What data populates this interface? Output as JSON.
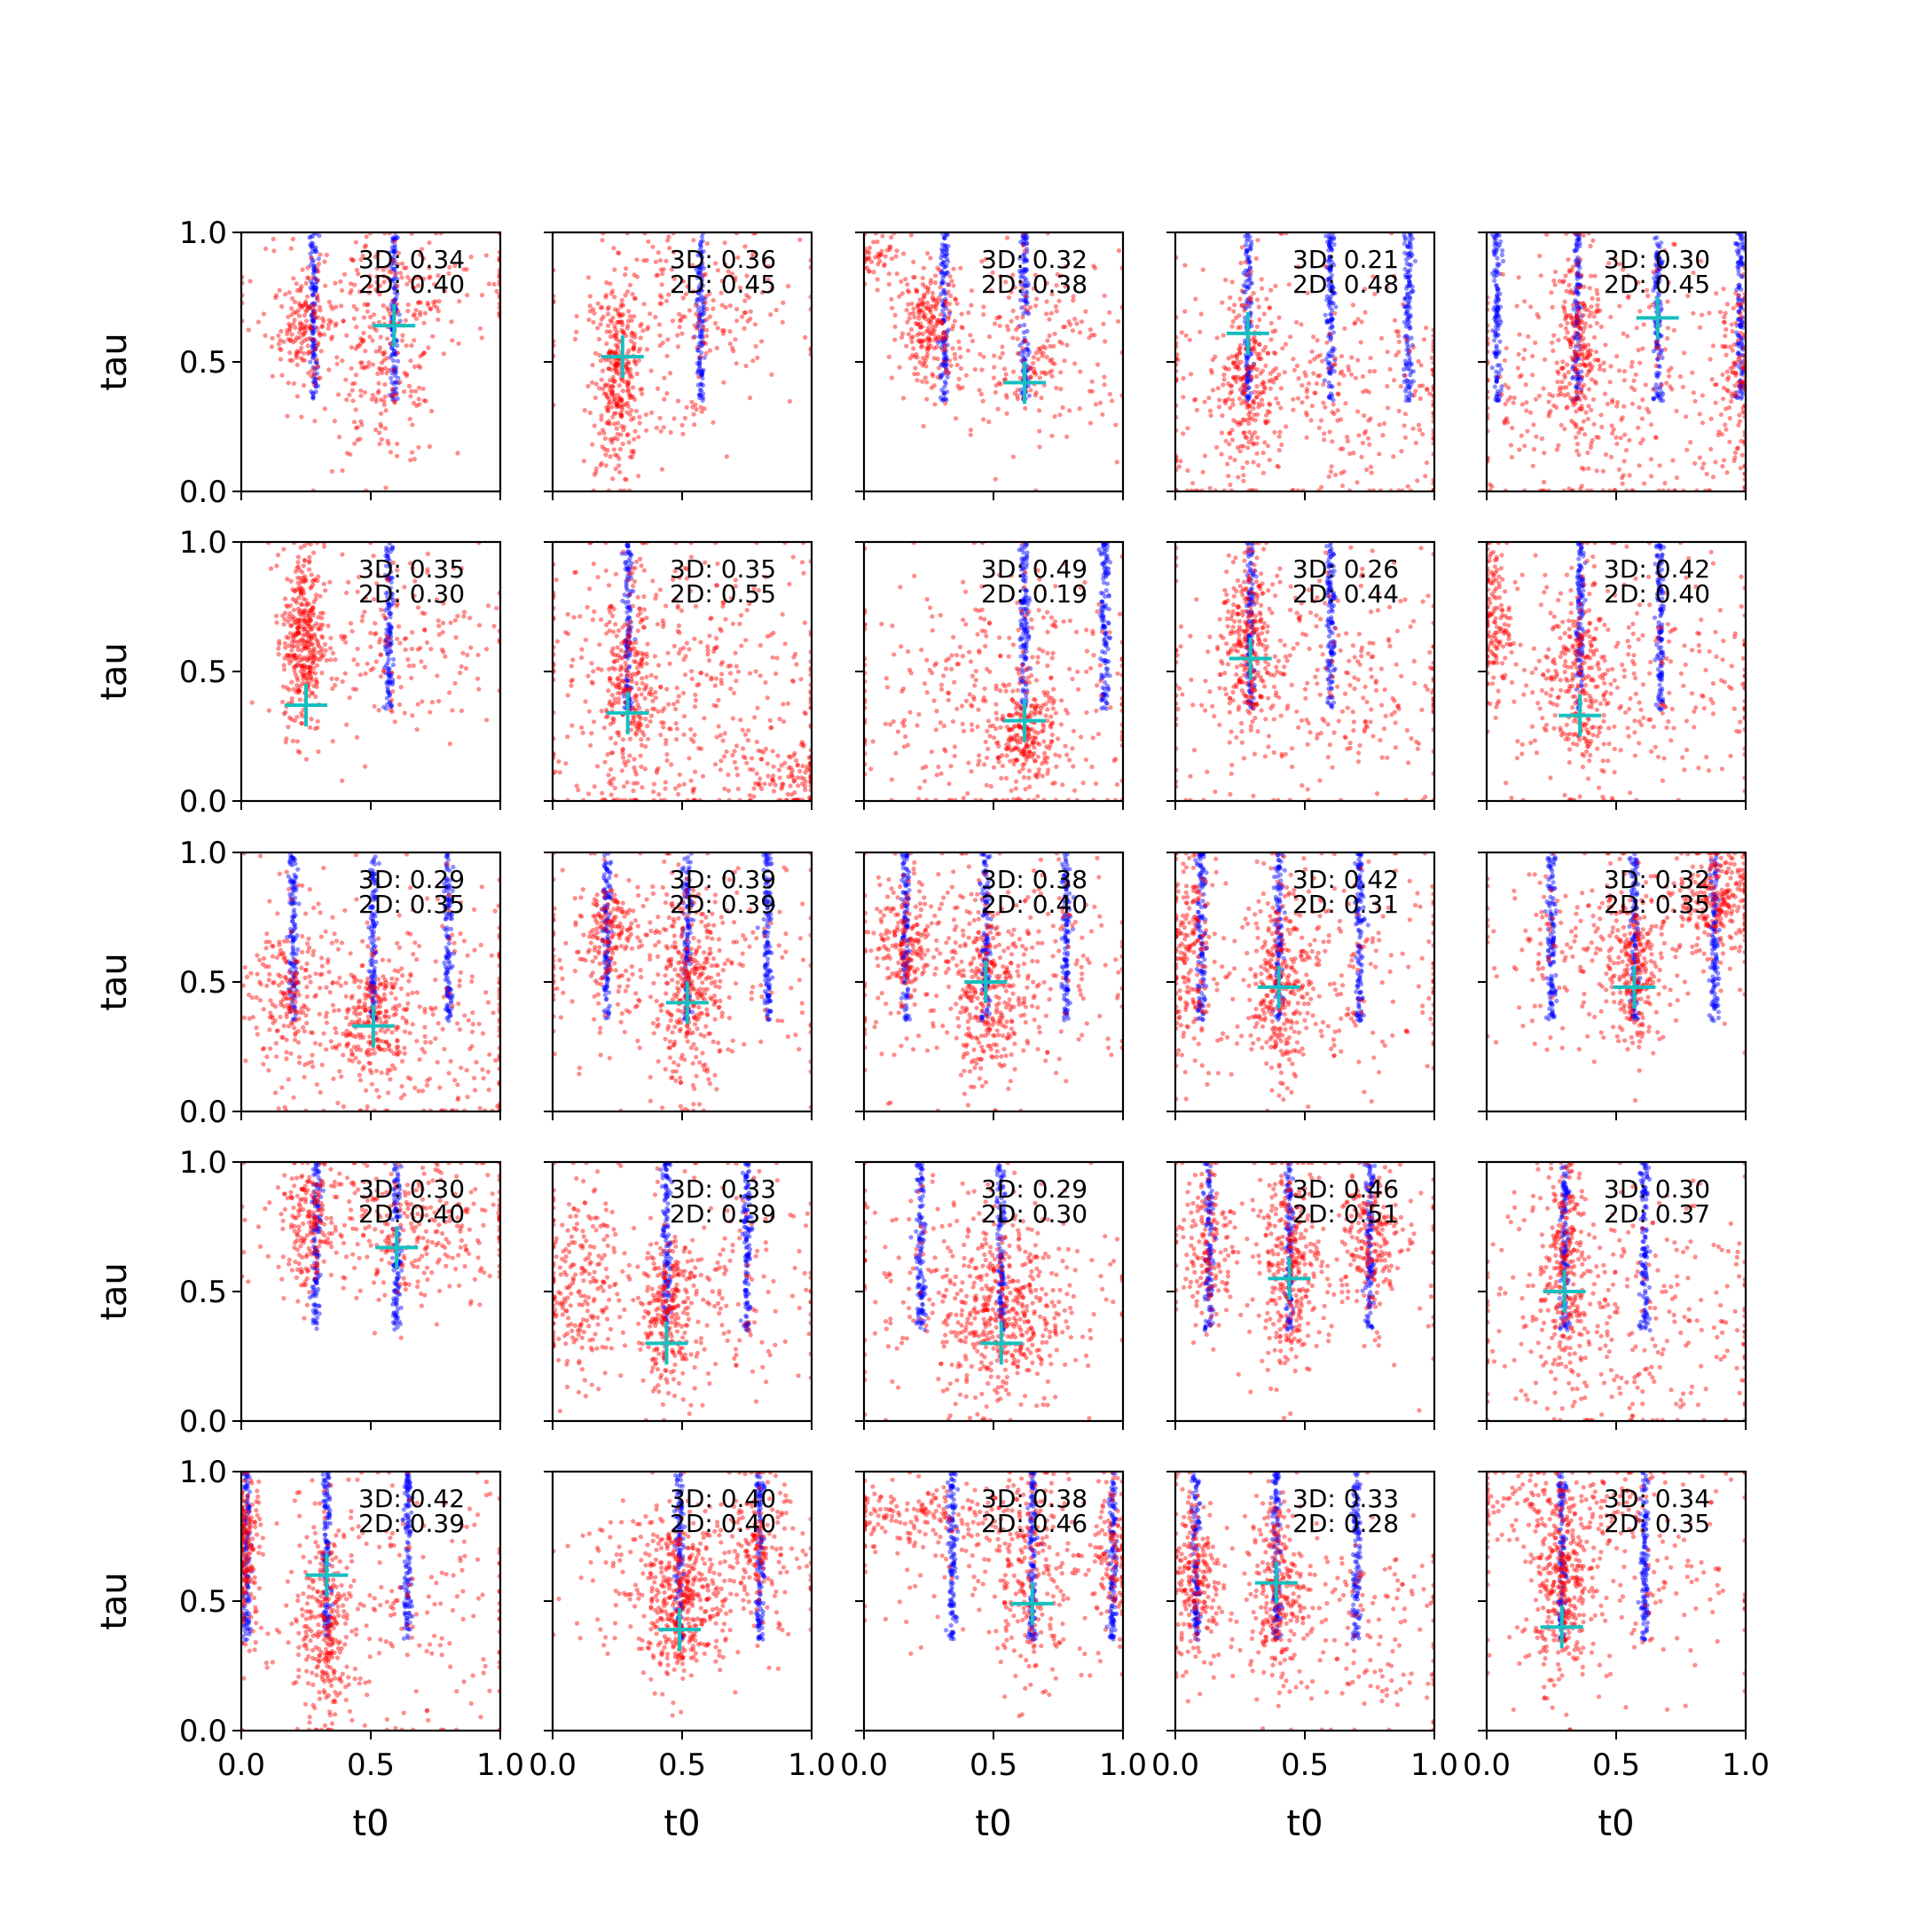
{
  "chart_data": {
    "type": "scatter",
    "layout": {
      "rows": 5,
      "cols": 5
    },
    "xlabel": "t0",
    "ylabel": "tau",
    "xlim": [
      0,
      1
    ],
    "ylim": [
      0,
      1
    ],
    "xticks": [
      "0.0",
      "0.5",
      "1.0"
    ],
    "yticks": [
      "0.0",
      "0.5",
      "1.0"
    ],
    "grid": false,
    "colors": {
      "cloud": "#ff0000",
      "band": "#0000ff",
      "marker": "#17bfbf"
    },
    "panels": [
      {
        "anno": [
          "3D: 0.34",
          "2D: 0.40"
        ],
        "marker": [
          0.59,
          0.64
        ],
        "bands": [
          0.28,
          0.59
        ],
        "clouds": [
          [
            0.24,
            0.63,
            0.06,
            0.1,
            160
          ],
          [
            0.55,
            0.45,
            0.12,
            0.18,
            200
          ],
          [
            0.6,
            0.8,
            0.3,
            0.12,
            160
          ]
        ]
      },
      {
        "anno": [
          "3D: 0.36",
          "2D: 0.45"
        ],
        "marker": [
          0.27,
          0.52
        ],
        "bands": [
          0.57
        ],
        "clouds": [
          [
            0.25,
            0.45,
            0.04,
            0.18,
            300
          ],
          [
            0.5,
            0.72,
            0.25,
            0.15,
            200
          ],
          [
            0.4,
            0.3,
            0.2,
            0.15,
            60
          ]
        ]
      },
      {
        "anno": [
          "3D: 0.32",
          "2D: 0.38"
        ],
        "marker": [
          0.62,
          0.42
        ],
        "bands": [
          0.31,
          0.62
        ],
        "clouds": [
          [
            0.25,
            0.65,
            0.06,
            0.12,
            220
          ],
          [
            0.65,
            0.55,
            0.18,
            0.18,
            240
          ],
          [
            0.05,
            0.9,
            0.05,
            0.05,
            50
          ]
        ]
      },
      {
        "anno": [
          "3D: 0.21",
          "2D: 0.48"
        ],
        "marker": [
          0.28,
          0.61
        ],
        "bands": [
          0.28,
          0.6,
          0.9
        ],
        "clouds": [
          [
            0.28,
            0.45,
            0.05,
            0.2,
            200
          ],
          [
            0.55,
            0.35,
            0.35,
            0.25,
            380
          ]
        ]
      },
      {
        "anno": [
          "3D: 0.30",
          "2D: 0.45"
        ],
        "marker": [
          0.66,
          0.67
        ],
        "bands": [
          0.04,
          0.35,
          0.66,
          0.98
        ],
        "clouds": [
          [
            0.35,
            0.55,
            0.04,
            0.22,
            180
          ],
          [
            0.5,
            0.4,
            0.32,
            0.25,
            380
          ],
          [
            0.96,
            0.45,
            0.04,
            0.2,
            100
          ]
        ]
      },
      {
        "anno": [
          "3D: 0.35",
          "2D: 0.30"
        ],
        "marker": [
          0.25,
          0.37
        ],
        "bands": [
          0.57
        ],
        "clouds": [
          [
            0.24,
            0.62,
            0.04,
            0.18,
            380
          ],
          [
            0.6,
            0.62,
            0.2,
            0.18,
            180
          ]
        ]
      },
      {
        "anno": [
          "3D: 0.35",
          "2D: 0.55"
        ],
        "marker": [
          0.29,
          0.34
        ],
        "bands": [
          0.29
        ],
        "clouds": [
          [
            0.29,
            0.4,
            0.06,
            0.2,
            220
          ],
          [
            0.5,
            0.45,
            0.32,
            0.28,
            420
          ],
          [
            0.9,
            0.1,
            0.1,
            0.08,
            120
          ]
        ]
      },
      {
        "anno": [
          "3D: 0.49",
          "2D: 0.19"
        ],
        "marker": [
          0.62,
          0.31
        ],
        "bands": [
          0.62,
          0.93
        ],
        "clouds": [
          [
            0.62,
            0.25,
            0.06,
            0.1,
            200
          ],
          [
            0.5,
            0.4,
            0.3,
            0.25,
            360
          ]
        ]
      },
      {
        "anno": [
          "3D: 0.26",
          "2D: 0.44"
        ],
        "marker": [
          0.29,
          0.55
        ],
        "bands": [
          0.29,
          0.6
        ],
        "clouds": [
          [
            0.28,
            0.6,
            0.05,
            0.18,
            260
          ],
          [
            0.55,
            0.45,
            0.3,
            0.25,
            320
          ]
        ]
      },
      {
        "anno": [
          "3D: 0.42",
          "2D: 0.40"
        ],
        "marker": [
          0.36,
          0.33
        ],
        "bands": [
          0.36,
          0.67
        ],
        "clouds": [
          [
            0.03,
            0.7,
            0.03,
            0.15,
            140
          ],
          [
            0.35,
            0.45,
            0.06,
            0.2,
            220
          ],
          [
            0.55,
            0.5,
            0.3,
            0.25,
            300
          ]
        ]
      },
      {
        "anno": [
          "3D: 0.29",
          "2D: 0.35"
        ],
        "marker": [
          0.51,
          0.33
        ],
        "bands": [
          0.2,
          0.51,
          0.8
        ],
        "clouds": [
          [
            0.2,
            0.45,
            0.08,
            0.18,
            220
          ],
          [
            0.5,
            0.35,
            0.08,
            0.12,
            220
          ],
          [
            0.7,
            0.35,
            0.25,
            0.25,
            240
          ]
        ]
      },
      {
        "anno": [
          "3D: 0.39",
          "2D: 0.39"
        ],
        "marker": [
          0.52,
          0.42
        ],
        "bands": [
          0.21,
          0.52,
          0.83
        ],
        "clouds": [
          [
            0.21,
            0.7,
            0.05,
            0.1,
            140
          ],
          [
            0.52,
            0.45,
            0.06,
            0.18,
            240
          ],
          [
            0.5,
            0.55,
            0.3,
            0.22,
            300
          ]
        ]
      },
      {
        "anno": [
          "3D: 0.38",
          "2D: 0.40"
        ],
        "marker": [
          0.47,
          0.5
        ],
        "bands": [
          0.16,
          0.47,
          0.78
        ],
        "clouds": [
          [
            0.16,
            0.65,
            0.05,
            0.12,
            160
          ],
          [
            0.47,
            0.45,
            0.06,
            0.18,
            240
          ],
          [
            0.5,
            0.55,
            0.3,
            0.22,
            320
          ]
        ]
      },
      {
        "anno": [
          "3D: 0.42",
          "2D: 0.31"
        ],
        "marker": [
          0.4,
          0.48
        ],
        "bands": [
          0.1,
          0.4,
          0.71
        ],
        "clouds": [
          [
            0.05,
            0.6,
            0.05,
            0.2,
            180
          ],
          [
            0.4,
            0.5,
            0.05,
            0.2,
            240
          ],
          [
            0.6,
            0.55,
            0.3,
            0.22,
            260
          ]
        ]
      },
      {
        "anno": [
          "3D: 0.32",
          "2D: 0.35"
        ],
        "marker": [
          0.57,
          0.48
        ],
        "bands": [
          0.25,
          0.57,
          0.88
        ],
        "clouds": [
          [
            0.57,
            0.55,
            0.05,
            0.15,
            200
          ],
          [
            0.9,
            0.82,
            0.08,
            0.1,
            260
          ],
          [
            0.45,
            0.6,
            0.25,
            0.18,
            240
          ]
        ]
      },
      {
        "anno": [
          "3D: 0.30",
          "2D: 0.40"
        ],
        "marker": [
          0.6,
          0.67
        ],
        "bands": [
          0.29,
          0.6
        ],
        "clouds": [
          [
            0.26,
            0.75,
            0.05,
            0.12,
            140
          ],
          [
            0.6,
            0.75,
            0.25,
            0.15,
            360
          ]
        ]
      },
      {
        "anno": [
          "3D: 0.33",
          "2D: 0.39"
        ],
        "marker": [
          0.44,
          0.3
        ],
        "bands": [
          0.44,
          0.75
        ],
        "clouds": [
          [
            0.44,
            0.4,
            0.06,
            0.15,
            260
          ],
          [
            0.1,
            0.55,
            0.08,
            0.2,
            240
          ],
          [
            0.7,
            0.55,
            0.2,
            0.22,
            160
          ]
        ]
      },
      {
        "anno": [
          "3D: 0.29",
          "2D: 0.30"
        ],
        "marker": [
          0.53,
          0.3
        ],
        "bands": [
          0.22,
          0.53
        ],
        "clouds": [
          [
            0.53,
            0.4,
            0.12,
            0.18,
            420
          ],
          [
            0.4,
            0.55,
            0.3,
            0.22,
            200
          ]
        ]
      },
      {
        "anno": [
          "3D: 0.46",
          "2D: 0.51"
        ],
        "marker": [
          0.44,
          0.55
        ],
        "bands": [
          0.13,
          0.44,
          0.75
        ],
        "clouds": [
          [
            0.13,
            0.7,
            0.05,
            0.15,
            140
          ],
          [
            0.44,
            0.6,
            0.06,
            0.2,
            280
          ],
          [
            0.75,
            0.7,
            0.06,
            0.15,
            200
          ],
          [
            0.5,
            0.6,
            0.3,
            0.2,
            120
          ]
        ]
      },
      {
        "anno": [
          "3D: 0.30",
          "2D: 0.37"
        ],
        "marker": [
          0.3,
          0.5
        ],
        "bands": [
          0.3,
          0.61
        ],
        "clouds": [
          [
            0.3,
            0.6,
            0.05,
            0.2,
            240
          ],
          [
            0.55,
            0.4,
            0.3,
            0.25,
            320
          ]
        ]
      },
      {
        "anno": [
          "3D: 0.42",
          "2D: 0.39"
        ],
        "marker": [
          0.33,
          0.6
        ],
        "bands": [
          0.02,
          0.33,
          0.64
        ],
        "clouds": [
          [
            0.02,
            0.7,
            0.03,
            0.15,
            180
          ],
          [
            0.33,
            0.4,
            0.05,
            0.2,
            240
          ],
          [
            0.55,
            0.45,
            0.3,
            0.25,
            240
          ]
        ]
      },
      {
        "anno": [
          "3D: 0.40",
          "2D: 0.40"
        ],
        "marker": [
          0.49,
          0.39
        ],
        "bands": [
          0.49,
          0.8
        ],
        "clouds": [
          [
            0.49,
            0.5,
            0.08,
            0.15,
            360
          ],
          [
            0.55,
            0.6,
            0.25,
            0.18,
            220
          ],
          [
            0.8,
            0.75,
            0.05,
            0.12,
            120
          ]
        ]
      },
      {
        "anno": [
          "3D: 0.38",
          "2D: 0.46"
        ],
        "marker": [
          0.65,
          0.49
        ],
        "bands": [
          0.34,
          0.65,
          0.96
        ],
        "clouds": [
          [
            0.2,
            0.82,
            0.18,
            0.06,
            160
          ],
          [
            0.65,
            0.6,
            0.08,
            0.2,
            200
          ],
          [
            0.96,
            0.7,
            0.04,
            0.15,
            100
          ],
          [
            0.55,
            0.65,
            0.3,
            0.2,
            140
          ]
        ]
      },
      {
        "anno": [
          "3D: 0.33",
          "2D: 0.28"
        ],
        "marker": [
          0.39,
          0.57
        ],
        "bands": [
          0.08,
          0.39,
          0.7
        ],
        "clouds": [
          [
            0.08,
            0.6,
            0.05,
            0.18,
            220
          ],
          [
            0.39,
            0.55,
            0.05,
            0.18,
            240
          ],
          [
            0.65,
            0.4,
            0.25,
            0.22,
            180
          ]
        ]
      },
      {
        "anno": [
          "3D: 0.34",
          "2D: 0.35"
        ],
        "marker": [
          0.29,
          0.4
        ],
        "bands": [
          0.29,
          0.61
        ],
        "clouds": [
          [
            0.29,
            0.55,
            0.05,
            0.18,
            300
          ],
          [
            0.3,
            0.85,
            0.25,
            0.08,
            160
          ],
          [
            0.55,
            0.6,
            0.3,
            0.22,
            160
          ]
        ]
      }
    ]
  }
}
